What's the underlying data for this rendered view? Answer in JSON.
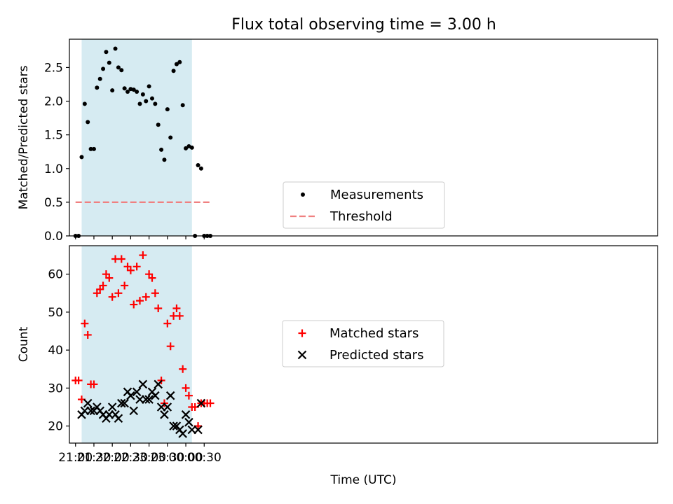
{
  "chart_data": [
    {
      "type": "scatter",
      "title": "Flux total observing time = 3.00 h",
      "xlabel": "",
      "ylabel": "Matched/Predicted stars",
      "xlim_minutes": [
        -10,
        950
      ],
      "ylim": [
        0,
        2.92
      ],
      "yticks": [
        0.0,
        0.5,
        1.0,
        1.5,
        2.0,
        2.5
      ],
      "ytick_labels": [
        "0.0",
        "0.5",
        "1.0",
        "1.5",
        "2.0",
        "2.5"
      ],
      "shaded_span": {
        "x0": "21:10",
        "x1": "00:10",
        "color": "#add8e6"
      },
      "series": [
        {
          "name": "Measurements",
          "marker": "dot",
          "color": "#000000",
          "points": [
            {
              "x": "21:00",
              "y": 0.0
            },
            {
              "x": "21:05",
              "y": 0.0
            },
            {
              "x": "21:10",
              "y": 1.17
            },
            {
              "x": "21:15",
              "y": 1.96
            },
            {
              "x": "21:20",
              "y": 1.69
            },
            {
              "x": "21:25",
              "y": 1.29
            },
            {
              "x": "21:30",
              "y": 1.29
            },
            {
              "x": "21:35",
              "y": 2.2
            },
            {
              "x": "21:40",
              "y": 2.33
            },
            {
              "x": "21:45",
              "y": 2.48
            },
            {
              "x": "21:50",
              "y": 2.73
            },
            {
              "x": "21:55",
              "y": 2.57
            },
            {
              "x": "22:00",
              "y": 2.16
            },
            {
              "x": "22:05",
              "y": 2.78
            },
            {
              "x": "22:10",
              "y": 2.5
            },
            {
              "x": "22:15",
              "y": 2.46
            },
            {
              "x": "22:20",
              "y": 2.19
            },
            {
              "x": "22:25",
              "y": 2.14
            },
            {
              "x": "22:30",
              "y": 2.18
            },
            {
              "x": "22:35",
              "y": 2.17
            },
            {
              "x": "22:40",
              "y": 2.14
            },
            {
              "x": "22:45",
              "y": 1.96
            },
            {
              "x": "22:50",
              "y": 2.1
            },
            {
              "x": "22:55",
              "y": 2.0
            },
            {
              "x": "23:00",
              "y": 2.22
            },
            {
              "x": "23:05",
              "y": 2.04
            },
            {
              "x": "23:10",
              "y": 1.96
            },
            {
              "x": "23:15",
              "y": 1.65
            },
            {
              "x": "23:20",
              "y": 1.28
            },
            {
              "x": "23:25",
              "y": 1.13
            },
            {
              "x": "23:30",
              "y": 1.88
            },
            {
              "x": "23:35",
              "y": 1.46
            },
            {
              "x": "23:40",
              "y": 2.45
            },
            {
              "x": "23:45",
              "y": 2.55
            },
            {
              "x": "23:50",
              "y": 2.58
            },
            {
              "x": "23:55",
              "y": 1.94
            },
            {
              "x": "00:00",
              "y": 1.3
            },
            {
              "x": "00:05",
              "y": 1.33
            },
            {
              "x": "00:10",
              "y": 1.31
            },
            {
              "x": "00:15",
              "y": 0.0
            },
            {
              "x": "00:20",
              "y": 1.05
            },
            {
              "x": "00:25",
              "y": 1.0
            },
            {
              "x": "00:30",
              "y": 0.0
            },
            {
              "x": "00:35",
              "y": 0.0
            },
            {
              "x": "00:40",
              "y": 0.0
            }
          ]
        },
        {
          "name": "Threshold",
          "style": "dashed",
          "color": "#f08080",
          "points": [
            {
              "x": "21:00",
              "y": 0.5
            },
            {
              "x": "00:40",
              "y": 0.5
            }
          ]
        }
      ],
      "legend": "lower center"
    },
    {
      "type": "scatter",
      "title": "",
      "xlabel": "Time (UTC)",
      "ylabel": "Count",
      "xlim_minutes": [
        -10,
        950
      ],
      "ylim": [
        15.5,
        67.5
      ],
      "yticks": [
        20,
        30,
        40,
        50,
        60
      ],
      "ytick_labels": [
        "20",
        "30",
        "40",
        "50",
        "60"
      ],
      "xticks": [
        "21:00",
        "21:30",
        "22:00",
        "22:30",
        "23:00",
        "23:30",
        "00:00",
        "00:30"
      ],
      "shaded_span": {
        "x0": "21:10",
        "x1": "00:10",
        "color": "#add8e6"
      },
      "series": [
        {
          "name": "Matched stars",
          "marker": "plus",
          "color": "#ff0000",
          "points": [
            {
              "x": "21:00",
              "y": 32
            },
            {
              "x": "21:05",
              "y": 32
            },
            {
              "x": "21:10",
              "y": 27
            },
            {
              "x": "21:15",
              "y": 47
            },
            {
              "x": "21:20",
              "y": 44
            },
            {
              "x": "21:25",
              "y": 31
            },
            {
              "x": "21:30",
              "y": 31
            },
            {
              "x": "21:35",
              "y": 55
            },
            {
              "x": "21:40",
              "y": 56
            },
            {
              "x": "21:45",
              "y": 57
            },
            {
              "x": "21:50",
              "y": 60
            },
            {
              "x": "21:55",
              "y": 59
            },
            {
              "x": "22:00",
              "y": 54
            },
            {
              "x": "22:05",
              "y": 64
            },
            {
              "x": "22:10",
              "y": 55
            },
            {
              "x": "22:15",
              "y": 64
            },
            {
              "x": "22:20",
              "y": 57
            },
            {
              "x": "22:25",
              "y": 62
            },
            {
              "x": "22:30",
              "y": 61
            },
            {
              "x": "22:35",
              "y": 52
            },
            {
              "x": "22:40",
              "y": 62
            },
            {
              "x": "22:45",
              "y": 53
            },
            {
              "x": "22:50",
              "y": 65
            },
            {
              "x": "22:55",
              "y": 54
            },
            {
              "x": "23:00",
              "y": 60
            },
            {
              "x": "23:05",
              "y": 59
            },
            {
              "x": "23:10",
              "y": 55
            },
            {
              "x": "23:15",
              "y": 51
            },
            {
              "x": "23:20",
              "y": 32
            },
            {
              "x": "23:25",
              "y": 26
            },
            {
              "x": "23:30",
              "y": 47
            },
            {
              "x": "23:35",
              "y": 41
            },
            {
              "x": "23:40",
              "y": 49
            },
            {
              "x": "23:45",
              "y": 51
            },
            {
              "x": "23:50",
              "y": 49
            },
            {
              "x": "23:55",
              "y": 35
            },
            {
              "x": "00:00",
              "y": 30
            },
            {
              "x": "00:05",
              "y": 28
            },
            {
              "x": "00:10",
              "y": 25
            },
            {
              "x": "00:15",
              "y": 25
            },
            {
              "x": "00:20",
              "y": 20
            },
            {
              "x": "00:25",
              "y": 26
            },
            {
              "x": "00:30",
              "y": 26
            },
            {
              "x": "00:35",
              "y": 26
            },
            {
              "x": "00:40",
              "y": 26
            }
          ]
        },
        {
          "name": "Predicted stars",
          "marker": "cross",
          "color": "#000000",
          "points": [
            {
              "x": "21:10",
              "y": 23
            },
            {
              "x": "21:15",
              "y": 24
            },
            {
              "x": "21:20",
              "y": 26
            },
            {
              "x": "21:25",
              "y": 24
            },
            {
              "x": "21:30",
              "y": 24
            },
            {
              "x": "21:35",
              "y": 25
            },
            {
              "x": "21:40",
              "y": 24
            },
            {
              "x": "21:45",
              "y": 23
            },
            {
              "x": "21:50",
              "y": 22
            },
            {
              "x": "21:55",
              "y": 23
            },
            {
              "x": "22:00",
              "y": 25
            },
            {
              "x": "22:05",
              "y": 23
            },
            {
              "x": "22:10",
              "y": 22
            },
            {
              "x": "22:15",
              "y": 26
            },
            {
              "x": "22:20",
              "y": 26
            },
            {
              "x": "22:25",
              "y": 29
            },
            {
              "x": "22:30",
              "y": 28
            },
            {
              "x": "22:35",
              "y": 24
            },
            {
              "x": "22:40",
              "y": 29
            },
            {
              "x": "22:45",
              "y": 27
            },
            {
              "x": "22:50",
              "y": 31
            },
            {
              "x": "22:55",
              "y": 27
            },
            {
              "x": "23:00",
              "y": 27
            },
            {
              "x": "23:05",
              "y": 29
            },
            {
              "x": "23:10",
              "y": 28
            },
            {
              "x": "23:15",
              "y": 31
            },
            {
              "x": "23:20",
              "y": 25
            },
            {
              "x": "23:25",
              "y": 23
            },
            {
              "x": "23:30",
              "y": 25
            },
            {
              "x": "23:35",
              "y": 28
            },
            {
              "x": "23:40",
              "y": 20
            },
            {
              "x": "23:45",
              "y": 20
            },
            {
              "x": "23:50",
              "y": 19
            },
            {
              "x": "23:55",
              "y": 18
            },
            {
              "x": "00:00",
              "y": 23
            },
            {
              "x": "00:05",
              "y": 21
            },
            {
              "x": "00:10",
              "y": 19
            },
            {
              "x": "00:20",
              "y": 19
            },
            {
              "x": "00:25",
              "y": 26
            }
          ]
        }
      ],
      "legend": "center"
    }
  ]
}
